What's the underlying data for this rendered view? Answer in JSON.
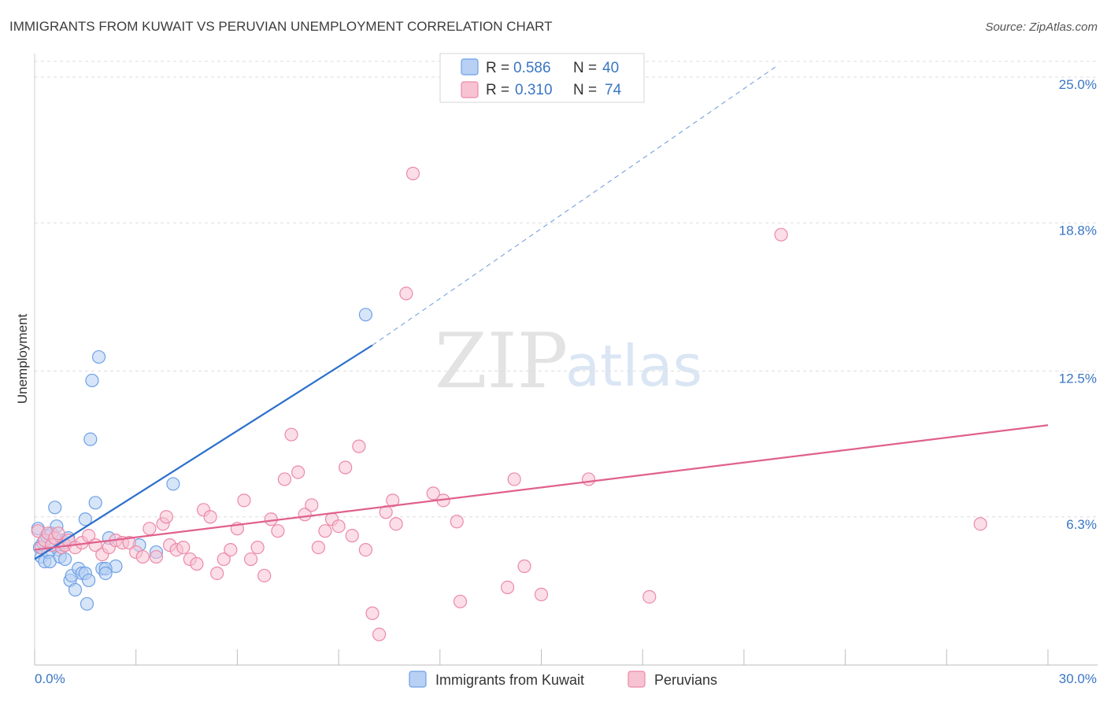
{
  "chart_data": {
    "type": "scatter",
    "title": "IMMIGRANTS FROM KUWAIT VS PERUVIAN UNEMPLOYMENT CORRELATION CHART",
    "source": "Source: ZipAtlas.com",
    "ylabel": "Unemployment",
    "xlim": [
      0,
      30
    ],
    "ylim": [
      0,
      25
    ],
    "x_tick_labels": [
      "0.0%",
      "30.0%"
    ],
    "y_ticks": [
      6.3,
      12.5,
      18.8,
      25.0
    ],
    "y_tick_labels": [
      "6.3%",
      "12.5%",
      "18.8%",
      "25.0%"
    ],
    "watermark": [
      "ZIP",
      "atlas"
    ],
    "legend": {
      "r_label": "R =",
      "n_label": "N =",
      "entries": [
        {
          "r": "0.586",
          "n": "40"
        },
        {
          "r": "0.310",
          "n": "74"
        }
      ]
    },
    "series": [
      {
        "name": "Immigrants from Kuwait",
        "color": "#6ea1e6",
        "fill": "#b7d0f3",
        "line_color": "#2a6fcb",
        "trend": {
          "x0": 0,
          "y0": 4.5,
          "x1": 10,
          "y1": 13.6,
          "dash_to_x": 22,
          "dash_to_y": 25.5
        },
        "points": [
          [
            0.1,
            5.8
          ],
          [
            0.15,
            5.0
          ],
          [
            0.2,
            4.6
          ],
          [
            0.25,
            5.2
          ],
          [
            0.3,
            4.4
          ],
          [
            0.35,
            5.5
          ],
          [
            0.4,
            4.8
          ],
          [
            0.45,
            4.4
          ],
          [
            0.5,
            5.6
          ],
          [
            0.55,
            5.1
          ],
          [
            0.6,
            6.7
          ],
          [
            0.65,
            5.9
          ],
          [
            0.7,
            4.9
          ],
          [
            0.75,
            4.6
          ],
          [
            0.8,
            5.3
          ],
          [
            0.85,
            5.2
          ],
          [
            0.9,
            4.5
          ],
          [
            1.0,
            5.4
          ],
          [
            1.05,
            3.6
          ],
          [
            1.1,
            3.8
          ],
          [
            1.2,
            3.2
          ],
          [
            1.3,
            4.1
          ],
          [
            1.4,
            3.9
          ],
          [
            1.5,
            3.9
          ],
          [
            1.55,
            2.6
          ],
          [
            1.6,
            3.6
          ],
          [
            1.65,
            9.6
          ],
          [
            1.7,
            12.1
          ],
          [
            1.8,
            6.9
          ],
          [
            1.9,
            13.1
          ],
          [
            2.0,
            4.1
          ],
          [
            2.2,
            5.4
          ],
          [
            2.4,
            4.2
          ],
          [
            2.1,
            4.1
          ],
          [
            1.5,
            6.2
          ],
          [
            2.1,
            3.9
          ],
          [
            3.1,
            5.1
          ],
          [
            3.6,
            4.8
          ],
          [
            4.1,
            7.7
          ],
          [
            9.8,
            14.9
          ]
        ]
      },
      {
        "name": "Peruvians",
        "color": "#ec89a8",
        "fill": "#f7c3d3",
        "line_color": "#e0608d",
        "trend": {
          "x0": 0,
          "y0": 4.9,
          "x1": 30,
          "y1": 10.2
        },
        "points": [
          [
            0.1,
            5.7
          ],
          [
            0.2,
            5.0
          ],
          [
            0.3,
            5.3
          ],
          [
            0.4,
            5.6
          ],
          [
            0.5,
            5.1
          ],
          [
            0.6,
            5.4
          ],
          [
            0.7,
            5.6
          ],
          [
            0.8,
            5.0
          ],
          [
            0.9,
            5.1
          ],
          [
            1.0,
            5.3
          ],
          [
            1.2,
            5.0
          ],
          [
            1.4,
            5.2
          ],
          [
            1.6,
            5.5
          ],
          [
            1.8,
            5.1
          ],
          [
            2.0,
            4.7
          ],
          [
            2.2,
            5.0
          ],
          [
            2.4,
            5.3
          ],
          [
            2.6,
            5.2
          ],
          [
            2.8,
            5.2
          ],
          [
            3.0,
            4.8
          ],
          [
            3.2,
            4.6
          ],
          [
            3.4,
            5.8
          ],
          [
            3.6,
            4.6
          ],
          [
            3.8,
            6.0
          ],
          [
            3.9,
            6.3
          ],
          [
            4.0,
            5.1
          ],
          [
            4.2,
            4.9
          ],
          [
            4.4,
            5.0
          ],
          [
            4.6,
            4.5
          ],
          [
            4.8,
            4.3
          ],
          [
            5.0,
            6.6
          ],
          [
            5.2,
            6.3
          ],
          [
            5.4,
            3.9
          ],
          [
            5.6,
            4.5
          ],
          [
            5.8,
            4.9
          ],
          [
            6.0,
            5.8
          ],
          [
            6.2,
            7.0
          ],
          [
            6.4,
            4.5
          ],
          [
            6.6,
            5.0
          ],
          [
            6.8,
            3.8
          ],
          [
            7.0,
            6.2
          ],
          [
            7.2,
            5.7
          ],
          [
            7.4,
            7.9
          ],
          [
            7.6,
            9.8
          ],
          [
            7.8,
            8.2
          ],
          [
            8.0,
            6.4
          ],
          [
            8.2,
            6.8
          ],
          [
            8.4,
            5.0
          ],
          [
            8.6,
            5.7
          ],
          [
            8.8,
            6.2
          ],
          [
            9.0,
            5.9
          ],
          [
            9.2,
            8.4
          ],
          [
            9.4,
            5.5
          ],
          [
            9.6,
            9.3
          ],
          [
            9.8,
            4.9
          ],
          [
            10.0,
            2.2
          ],
          [
            10.2,
            1.3
          ],
          [
            10.4,
            6.5
          ],
          [
            10.6,
            7.0
          ],
          [
            10.7,
            6.0
          ],
          [
            11.0,
            15.8
          ],
          [
            11.2,
            20.9
          ],
          [
            11.8,
            7.3
          ],
          [
            12.1,
            7.0
          ],
          [
            12.5,
            6.1
          ],
          [
            12.6,
            2.7
          ],
          [
            14.0,
            3.3
          ],
          [
            14.2,
            7.9
          ],
          [
            14.5,
            4.2
          ],
          [
            15.0,
            3.0
          ],
          [
            16.4,
            7.9
          ],
          [
            18.2,
            2.9
          ],
          [
            22.1,
            18.3
          ],
          [
            28.0,
            6.0
          ]
        ]
      }
    ]
  }
}
